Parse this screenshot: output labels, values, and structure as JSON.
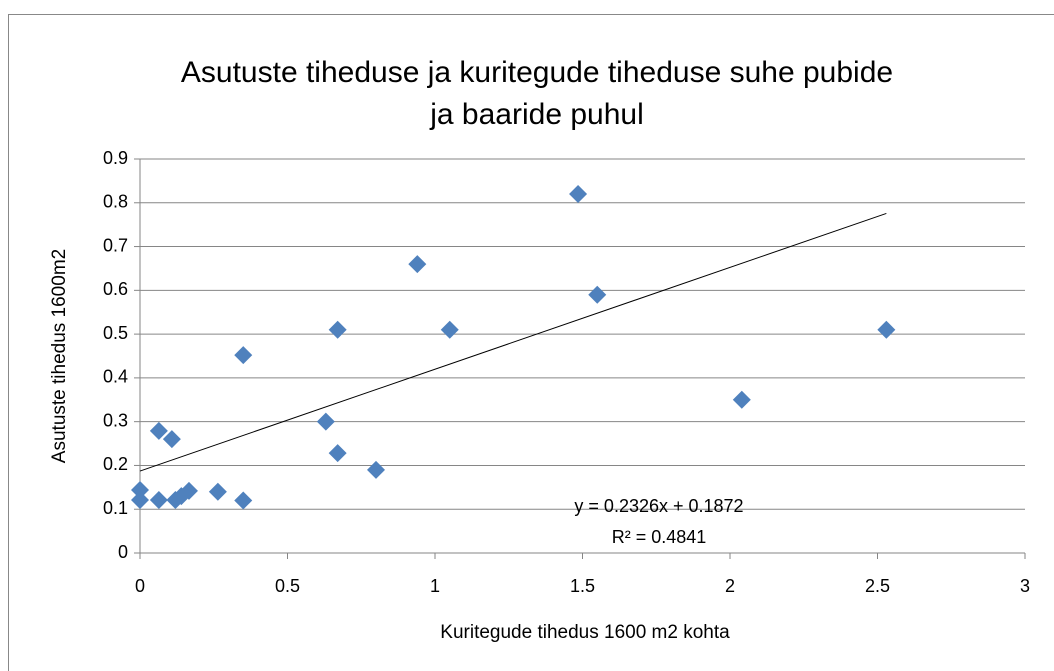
{
  "chart_data": {
    "type": "scatter",
    "title": [
      "Asutuste tiheduse ja kuritegude tiheduse suhe pubide",
      "ja baaride puhul"
    ],
    "x_label": "Kuritegude tihedus 1600 m2 kohta",
    "y_label": "Asutuste tihedus 1600m2",
    "color": "#4f81bd",
    "x": [
      0,
      0,
      0.064,
      0.108,
      0.064,
      0.12,
      0.14,
      0.166,
      0.264,
      0.35,
      0.35,
      0.63,
      0.67,
      0.67,
      0.8,
      0.94,
      1.05,
      1.485,
      1.55,
      2.04,
      2.53
    ],
    "values": [
      0.144,
      0.121,
      0.279,
      0.26,
      0.121,
      0.121,
      0.13,
      0.142,
      0.14,
      0.12,
      0.452,
      0.3,
      0.228,
      0.51,
      0.19,
      0.66,
      0.51,
      0.82,
      0.59,
      0.35,
      0.51
    ],
    "xlim": [
      0,
      3
    ],
    "xticks": [
      0,
      0.5,
      1,
      1.5,
      2,
      2.5,
      3
    ],
    "ylim": [
      0,
      0.9
    ],
    "yticks": [
      0,
      0.1,
      0.2,
      0.3,
      0.4,
      0.5,
      0.6,
      0.7,
      0.8,
      0.9
    ],
    "grid": true,
    "trendline": {
      "equation": "y = 0.2326x + 0.1872",
      "r2": "R² = 0.4841",
      "slope": 0.2326,
      "intercept": 0.1872,
      "xlim": [
        0,
        2.53
      ]
    }
  }
}
